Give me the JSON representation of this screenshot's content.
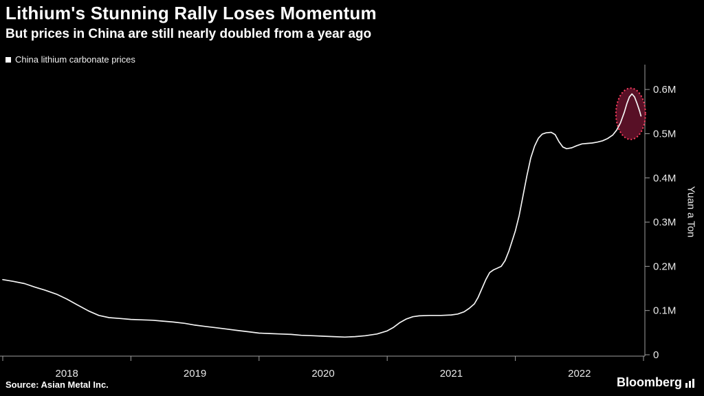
{
  "header": {
    "title": "Lithium's Stunning Rally Loses Momentum",
    "subtitle": "But prices in China are still nearly doubled from a year ago"
  },
  "legend": {
    "label": "China lithium carbonate prices",
    "swatch_color": "#ffffff"
  },
  "source": "Source: Asian Metal Inc.",
  "brand": {
    "name": "Bloomberg"
  },
  "colors": {
    "background": "#000000",
    "text": "#ffffff",
    "axis": "#a0a0a0",
    "tick_text": "#e8e8e8",
    "line": "#f5f5f5",
    "highlight_fill": "#6e1430",
    "highlight_stroke": "#ff4060"
  },
  "chart_data": {
    "type": "line",
    "title": "China lithium carbonate prices",
    "xlabel": "",
    "ylabel": "Yuan a Ton",
    "xlim": [
      2018,
      2023
    ],
    "ylim": [
      0,
      0.65
    ],
    "grid": false,
    "legend_position": "top-left",
    "x_tick_years": [
      2018,
      2019,
      2020,
      2021,
      2022,
      2023
    ],
    "x_label_years": [
      "2018",
      "2019",
      "2020",
      "2021",
      "2022"
    ],
    "y_ticks": [
      {
        "value": 0.0,
        "label": "0"
      },
      {
        "value": 0.1,
        "label": "0.1M"
      },
      {
        "value": 0.2,
        "label": "0.2M"
      },
      {
        "value": 0.3,
        "label": "0.3M"
      },
      {
        "value": 0.4,
        "label": "0.4M"
      },
      {
        "value": 0.5,
        "label": "0.5M"
      },
      {
        "value": 0.6,
        "label": "0.6M"
      }
    ],
    "series": [
      {
        "name": "China lithium carbonate prices",
        "color": "#f5f5f5",
        "points": [
          [
            2018.0,
            0.17
          ],
          [
            2018.08,
            0.166
          ],
          [
            2018.17,
            0.161
          ],
          [
            2018.25,
            0.153
          ],
          [
            2018.33,
            0.146
          ],
          [
            2018.42,
            0.137
          ],
          [
            2018.5,
            0.126
          ],
          [
            2018.58,
            0.113
          ],
          [
            2018.67,
            0.099
          ],
          [
            2018.75,
            0.089
          ],
          [
            2018.83,
            0.084
          ],
          [
            2018.92,
            0.082
          ],
          [
            2019.0,
            0.08
          ],
          [
            2019.08,
            0.079
          ],
          [
            2019.17,
            0.078
          ],
          [
            2019.25,
            0.076
          ],
          [
            2019.33,
            0.074
          ],
          [
            2019.42,
            0.071
          ],
          [
            2019.5,
            0.067
          ],
          [
            2019.58,
            0.064
          ],
          [
            2019.67,
            0.061
          ],
          [
            2019.75,
            0.058
          ],
          [
            2019.83,
            0.055
          ],
          [
            2019.92,
            0.052
          ],
          [
            2020.0,
            0.049
          ],
          [
            2020.08,
            0.048
          ],
          [
            2020.17,
            0.047
          ],
          [
            2020.25,
            0.046
          ],
          [
            2020.33,
            0.044
          ],
          [
            2020.42,
            0.043
          ],
          [
            2020.5,
            0.042
          ],
          [
            2020.58,
            0.041
          ],
          [
            2020.67,
            0.04
          ],
          [
            2020.75,
            0.041
          ],
          [
            2020.83,
            0.043
          ],
          [
            2020.92,
            0.047
          ],
          [
            2021.0,
            0.054
          ],
          [
            2021.05,
            0.062
          ],
          [
            2021.1,
            0.073
          ],
          [
            2021.15,
            0.081
          ],
          [
            2021.2,
            0.086
          ],
          [
            2021.25,
            0.088
          ],
          [
            2021.33,
            0.089
          ],
          [
            2021.42,
            0.089
          ],
          [
            2021.5,
            0.09
          ],
          [
            2021.55,
            0.092
          ],
          [
            2021.6,
            0.097
          ],
          [
            2021.64,
            0.105
          ],
          [
            2021.68,
            0.115
          ],
          [
            2021.71,
            0.13
          ],
          [
            2021.74,
            0.15
          ],
          [
            2021.77,
            0.17
          ],
          [
            2021.8,
            0.186
          ],
          [
            2021.83,
            0.192
          ],
          [
            2021.86,
            0.196
          ],
          [
            2021.89,
            0.2
          ],
          [
            2021.92,
            0.213
          ],
          [
            2021.95,
            0.235
          ],
          [
            2021.98,
            0.262
          ],
          [
            2022.0,
            0.28
          ],
          [
            2022.03,
            0.315
          ],
          [
            2022.06,
            0.36
          ],
          [
            2022.09,
            0.405
          ],
          [
            2022.12,
            0.445
          ],
          [
            2022.15,
            0.472
          ],
          [
            2022.18,
            0.49
          ],
          [
            2022.21,
            0.499
          ],
          [
            2022.24,
            0.502
          ],
          [
            2022.28,
            0.503
          ],
          [
            2022.31,
            0.498
          ],
          [
            2022.34,
            0.482
          ],
          [
            2022.37,
            0.47
          ],
          [
            2022.4,
            0.466
          ],
          [
            2022.44,
            0.468
          ],
          [
            2022.48,
            0.473
          ],
          [
            2022.52,
            0.477
          ],
          [
            2022.56,
            0.478
          ],
          [
            2022.6,
            0.479
          ],
          [
            2022.64,
            0.481
          ],
          [
            2022.68,
            0.484
          ],
          [
            2022.72,
            0.489
          ],
          [
            2022.76,
            0.497
          ],
          [
            2022.79,
            0.508
          ],
          [
            2022.82,
            0.524
          ],
          [
            2022.85,
            0.548
          ],
          [
            2022.87,
            0.568
          ],
          [
            2022.89,
            0.583
          ],
          [
            2022.91,
            0.59
          ],
          [
            2022.93,
            0.583
          ],
          [
            2022.95,
            0.568
          ],
          [
            2022.97,
            0.551
          ],
          [
            2022.98,
            0.54
          ]
        ]
      }
    ],
    "annotation": {
      "shape": "ellipse",
      "meaning": "highlight of recent peak losing momentum",
      "center_x": 2022.9,
      "center_y": 0.545,
      "rx_years": 0.115,
      "ry_value": 0.058,
      "fill": "#6e1430",
      "fill_opacity": 0.8,
      "stroke": "#ff4060"
    }
  }
}
